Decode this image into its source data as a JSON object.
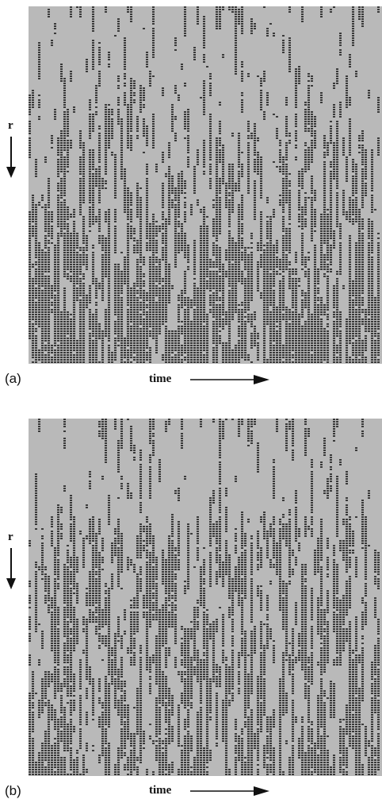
{
  "panels": [
    {
      "label": "(a)",
      "y_axis_label": "r",
      "x_axis_label": "time"
    },
    {
      "label": "(b)",
      "y_axis_label": "r",
      "x_axis_label": "time"
    }
  ],
  "colors": {
    "background": "#b9b9b9",
    "cell": "#3a3a3a"
  }
}
